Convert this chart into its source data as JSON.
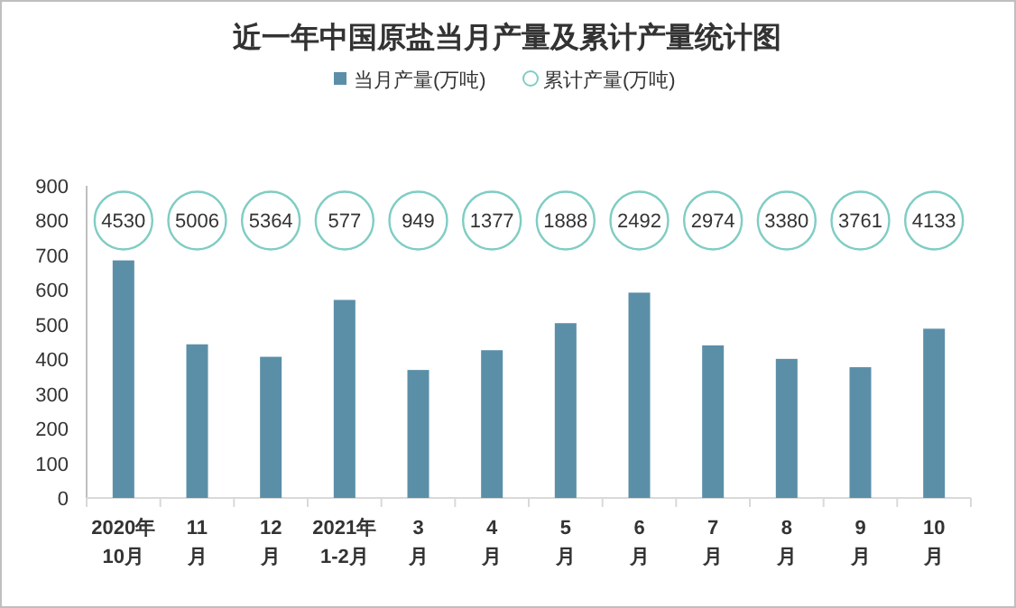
{
  "chart_data": {
    "type": "bar",
    "title": "近一年中国原盐当月产量及累计产量统计图",
    "categories": [
      "2020年\n10月",
      "11\n月",
      "12\n月",
      "2021年\n1-2月",
      "3\n月",
      "4\n月",
      "5\n月",
      "6\n月",
      "7\n月",
      "8\n月",
      "9\n月",
      "10\n月"
    ],
    "series": [
      {
        "name": "当月产量(万吨)",
        "color": "#5b8fa8",
        "values": [
          685,
          443,
          407,
          571,
          369,
          426,
          504,
          592,
          440,
          401,
          377,
          488
        ]
      },
      {
        "name": "累计产量(万吨)",
        "type": "scatter",
        "marker": "circle",
        "color": "#7fcdc4",
        "values": [
          null,
          null,
          null,
          null,
          null,
          null,
          null,
          null,
          null,
          null,
          null,
          null
        ]
      }
    ],
    "annotations": [
      {
        "text": "4530",
        "x": "2020年\n10月",
        "y": 800
      },
      {
        "text": "5006",
        "x": "11\n月",
        "y": 800
      },
      {
        "text": "5364",
        "x": "12\n月",
        "y": 800
      },
      {
        "text": "577",
        "x": "2021年\n1-2月",
        "y": 800
      },
      {
        "text": "949",
        "x": "3\n月",
        "y": 800
      },
      {
        "text": "1377",
        "x": "4\n月",
        "y": 800
      },
      {
        "text": "1888",
        "x": "5\n月",
        "y": 800
      },
      {
        "text": "2492",
        "x": "6\n月",
        "y": 800
      },
      {
        "text": "2974",
        "x": "7\n月",
        "y": 800
      },
      {
        "text": "3380",
        "x": "8\n月",
        "y": 800
      },
      {
        "text": "3761",
        "x": "9\n月",
        "y": 800
      },
      {
        "text": "4133",
        "x": "10\n月",
        "y": 800
      }
    ],
    "ylim": [
      0,
      900
    ],
    "yticks": [
      0,
      100,
      200,
      300,
      400,
      500,
      600,
      700,
      800,
      900
    ],
    "grid": false,
    "legend": "top"
  }
}
